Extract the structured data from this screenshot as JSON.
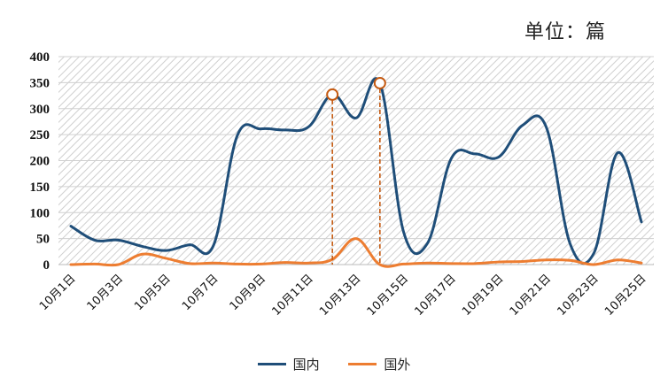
{
  "unit_label": "单位：篇",
  "colors": {
    "domestic": "#1f4e79",
    "foreign": "#ed7d31",
    "marker": "#c0504d",
    "grid": "#d0d0d0"
  },
  "chart_data": {
    "type": "line",
    "title": "",
    "xlabel": "",
    "ylabel": "",
    "ylim": [
      0,
      400
    ],
    "yticks": [
      0,
      50,
      100,
      150,
      200,
      250,
      300,
      350,
      400
    ],
    "x": [
      "10月1日",
      "10月2日",
      "10月3日",
      "10月4日",
      "10月5日",
      "10月6日",
      "10月7日",
      "10月8日",
      "10月9日",
      "10月10日",
      "10月11日",
      "10月12日",
      "10月13日",
      "10月14日",
      "10月15日",
      "10月16日",
      "10月17日",
      "10月18日",
      "10月19日",
      "10月20日",
      "10月21日",
      "10月22日",
      "10月23日",
      "10月24日",
      "10月25日"
    ],
    "xtick_labels": [
      "10月1日",
      "10月3日",
      "10月5日",
      "10月7日",
      "10月9日",
      "10月11日",
      "10月13日",
      "10月15日",
      "10月17日",
      "10月19日",
      "10月21日",
      "10月23日",
      "10月25日"
    ],
    "series": [
      {
        "name": "国内",
        "values": [
          74,
          47,
          47,
          35,
          27,
          38,
          37,
          248,
          261,
          259,
          265,
          327,
          282,
          349,
          62,
          41,
          204,
          213,
          207,
          268,
          264,
          40,
          22,
          215,
          82
        ]
      },
      {
        "name": "国外",
        "values": [
          0,
          1,
          0,
          20,
          12,
          2,
          3,
          1,
          1,
          4,
          3,
          10,
          50,
          0,
          1,
          3,
          2,
          2,
          5,
          6,
          9,
          8,
          0,
          9,
          3
        ]
      }
    ],
    "highlights": [
      {
        "x": "10月12日",
        "y": 327
      },
      {
        "x": "10月14日",
        "y": 349
      }
    ],
    "legend_position": "bottom",
    "grid": true
  }
}
